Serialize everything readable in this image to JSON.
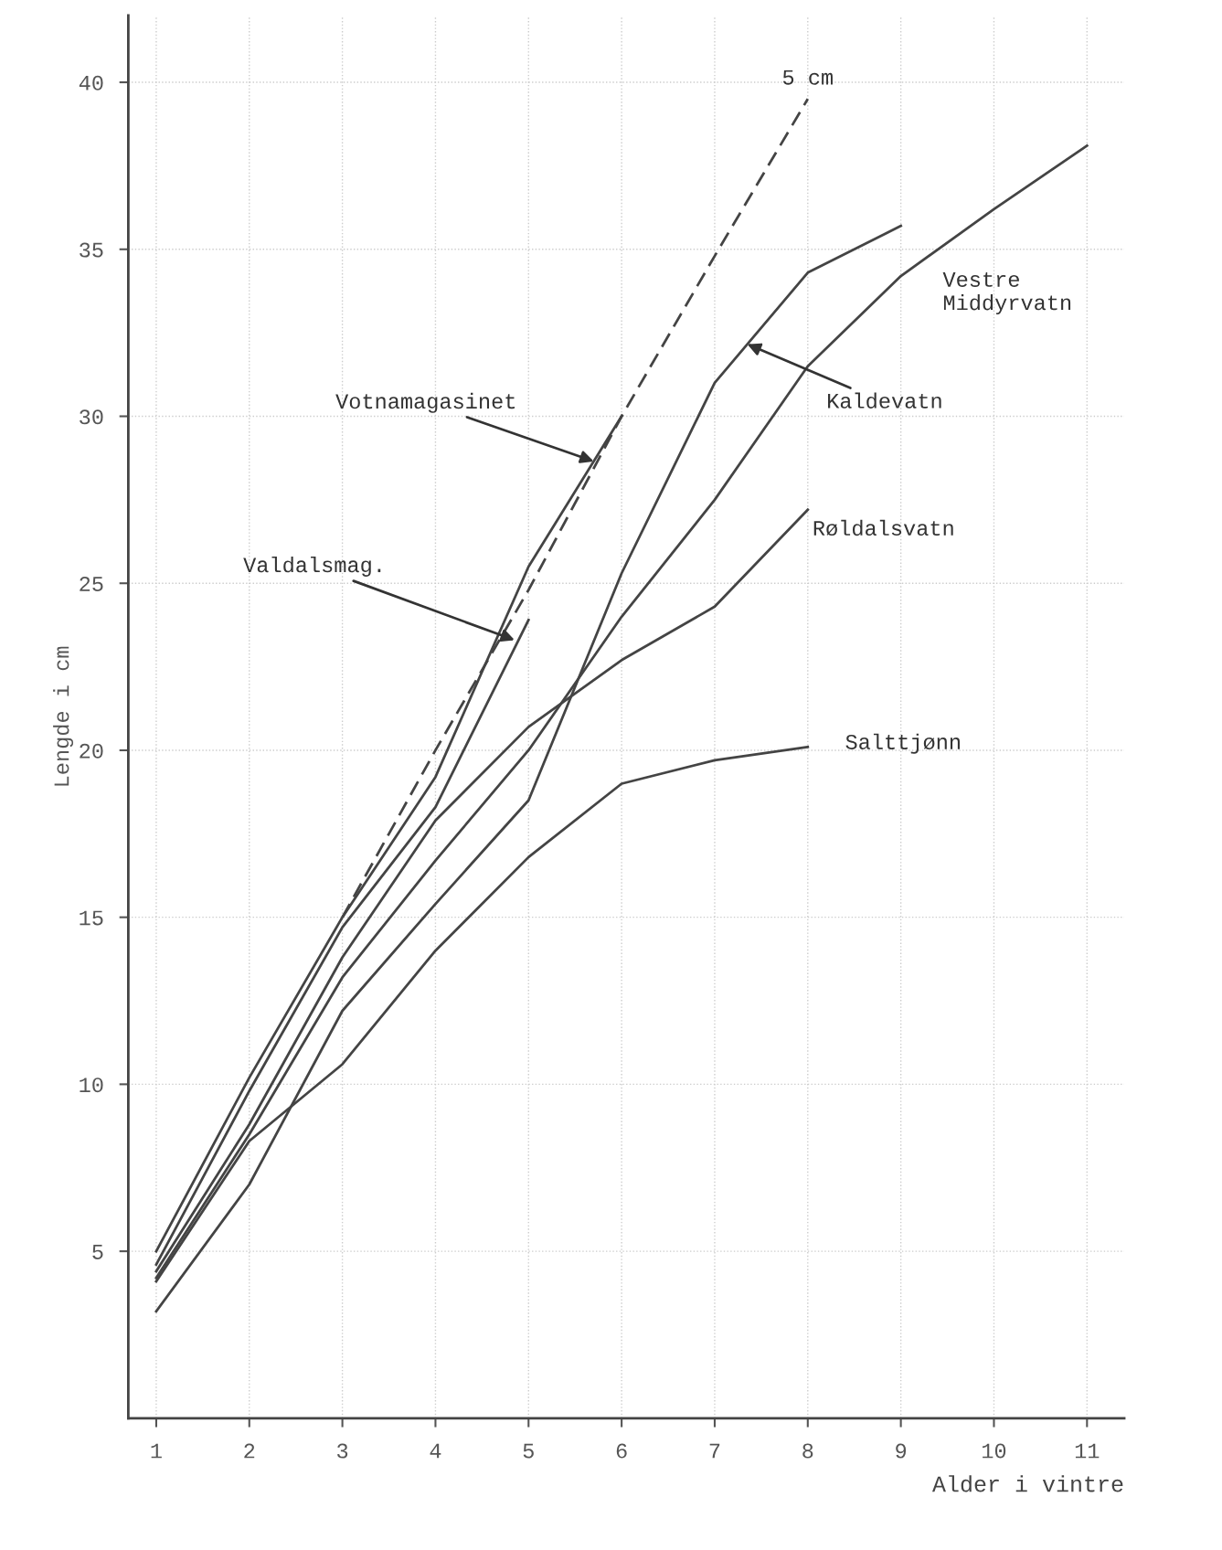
{
  "chart_data": {
    "type": "line",
    "xlabel": "Alder i vintre",
    "ylabel": "Lengde i cm",
    "x": [
      1,
      2,
      3,
      4,
      5,
      6,
      7,
      8,
      9,
      10,
      11
    ],
    "series": [
      {
        "color": "#444444",
        "values": [
          5.0,
          10.2,
          15.0,
          19.2,
          25.5,
          30.0,
          null,
          null,
          null,
          null,
          null
        ]
      },
      {
        "color": "#444444",
        "values": [
          4.6,
          9.8,
          14.7,
          18.3,
          23.9,
          null,
          null,
          null,
          null,
          null,
          null
        ]
      },
      {
        "color": "#444444",
        "values": [
          3.2,
          7.0,
          12.2,
          15.4,
          18.5,
          25.3,
          31.0,
          34.3,
          35.7,
          null,
          null
        ]
      },
      {
        "color": "#444444",
        "values": [
          4.4,
          8.8,
          13.8,
          17.9,
          20.7,
          22.7,
          24.3,
          27.2,
          null,
          null,
          null
        ]
      },
      {
        "color": "#444444",
        "values": [
          4.2,
          8.5,
          13.2,
          16.7,
          20.0,
          24.0,
          27.5,
          31.5,
          34.2,
          36.2,
          38.1
        ]
      },
      {
        "color": "#444444",
        "values": [
          4.1,
          8.3,
          10.6,
          14.0,
          16.8,
          19.0,
          19.7,
          20.1,
          null,
          null,
          null
        ]
      },
      {
        "color": "#444444",
        "line_style": "dashed",
        "values": [
          null,
          null,
          15.0,
          20.0,
          24.8,
          30.0,
          34.8,
          39.5,
          null,
          null,
          null
        ]
      }
    ],
    "xlim": [
      0.7,
      11.4
    ],
    "ylim": [
      0,
      42
    ],
    "xticks": [
      1,
      2,
      3,
      4,
      5,
      6,
      7,
      8,
      9,
      10,
      11
    ],
    "yticks": [
      5,
      10,
      15,
      20,
      25,
      30,
      35,
      40
    ],
    "grid": true,
    "line_style": "solid",
    "marker": "none",
    "annotations": [
      {
        "text": "5 cm",
        "x": 8,
        "y": 39.5
      },
      {
        "text": "Votnamagasinet",
        "x": 5.7,
        "y": 28.65
      },
      {
        "text": "Valdalsmag.",
        "x": 4.85,
        "y": 23.3
      },
      {
        "text": "Kaldevatn",
        "x": 7.35,
        "y": 32.16
      },
      {
        "text": "Vestre\nMiddyrvatn",
        "x": 9,
        "y": 34.2
      },
      {
        "text": "Røldalsvatn",
        "x": 8,
        "y": 27.2
      },
      {
        "text": "Salttjønn",
        "x": 8,
        "y": 20.1
      }
    ]
  }
}
